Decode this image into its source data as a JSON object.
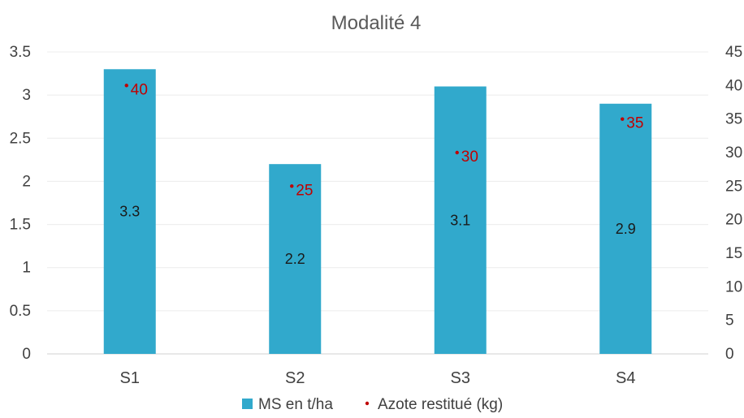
{
  "chart_data": {
    "type": "bar",
    "title": "Modalité 4",
    "categories": [
      "S1",
      "S2",
      "S3",
      "S4"
    ],
    "series": [
      {
        "name": "MS en t/ha",
        "type": "bar",
        "axis": "left",
        "color": "#31a9cc",
        "values": [
          3.3,
          2.2,
          3.1,
          2.9
        ],
        "labels": [
          "3.3",
          "2.2",
          "3.1",
          "2.9"
        ]
      },
      {
        "name": "Azote restitué (kg)",
        "type": "scatter",
        "axis": "right",
        "color": "#c00000",
        "values": [
          40,
          25,
          30,
          35
        ],
        "labels": [
          "40",
          "25",
          "30",
          "35"
        ]
      }
    ],
    "y_left": {
      "min": 0,
      "max": 3.5,
      "ticks": [
        "0",
        "0.5",
        "1",
        "1.5",
        "2",
        "2.5",
        "3",
        "3.5"
      ]
    },
    "y_right": {
      "min": 0,
      "max": 45,
      "ticks": [
        "0",
        "5",
        "10",
        "15",
        "20",
        "25",
        "30",
        "35",
        "40",
        "45"
      ]
    },
    "grid": true,
    "legend_position": "bottom"
  }
}
